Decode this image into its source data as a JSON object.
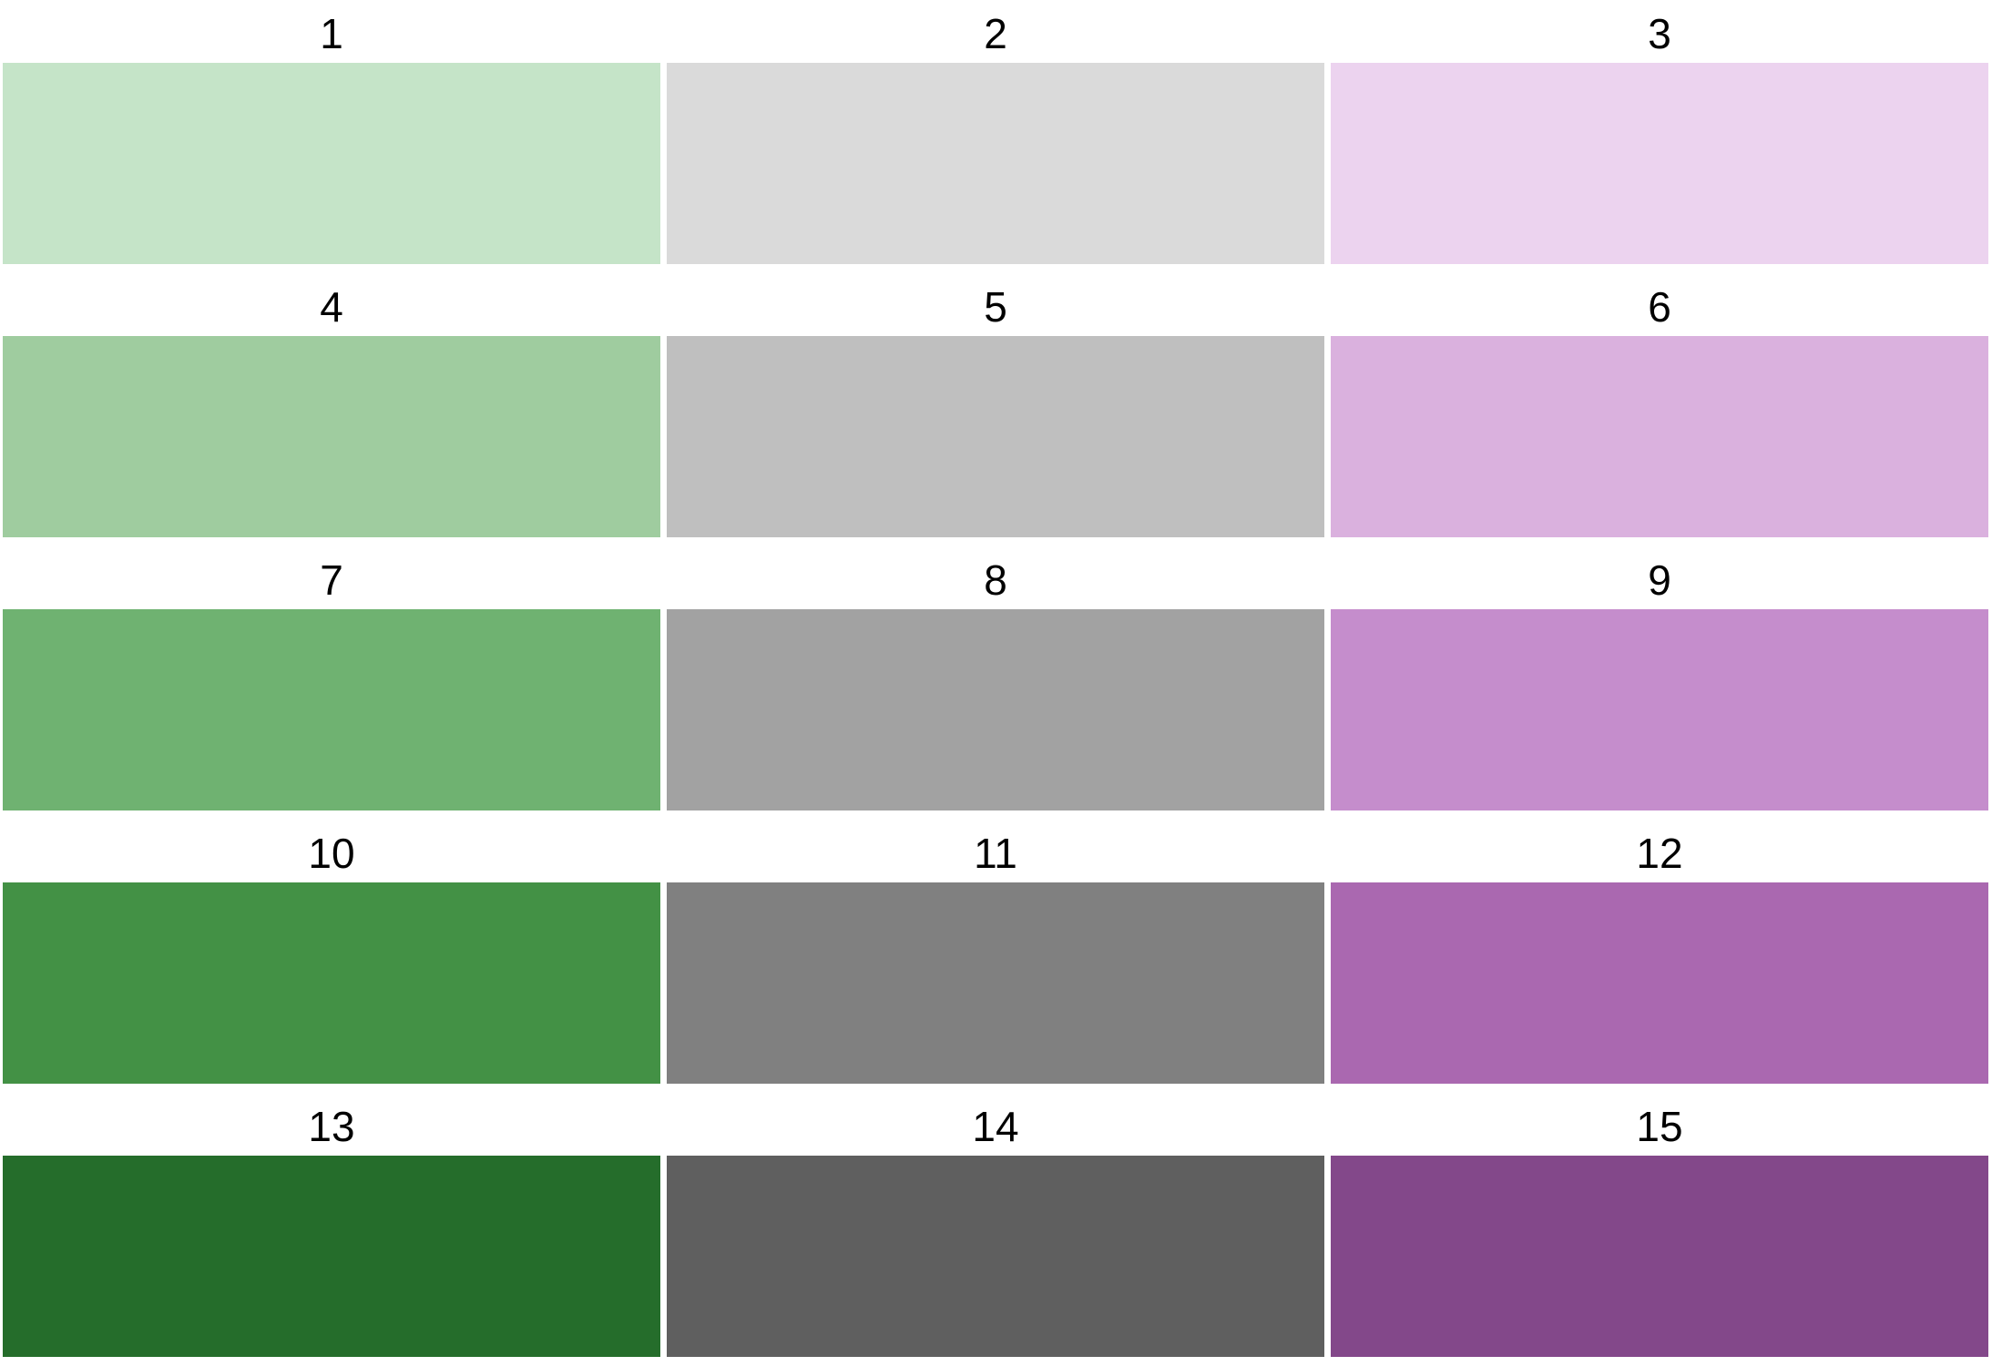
{
  "swatches": [
    {
      "label": "1",
      "color": "#c5e4c8"
    },
    {
      "label": "2",
      "color": "#dadada"
    },
    {
      "label": "3",
      "color": "#ecd3ef"
    },
    {
      "label": "4",
      "color": "#9fcc9f"
    },
    {
      "label": "5",
      "color": "#bfbfbf"
    },
    {
      "label": "6",
      "color": "#dab1de"
    },
    {
      "label": "7",
      "color": "#6fb271"
    },
    {
      "label": "8",
      "color": "#a2a2a2"
    },
    {
      "label": "9",
      "color": "#c58dcc"
    },
    {
      "label": "10",
      "color": "#439145"
    },
    {
      "label": "11",
      "color": "#808080"
    },
    {
      "label": "12",
      "color": "#aa68b0"
    },
    {
      "label": "13",
      "color": "#256d2b"
    },
    {
      "label": "14",
      "color": "#5f5f5f"
    },
    {
      "label": "15",
      "color": "#83488a"
    }
  ]
}
